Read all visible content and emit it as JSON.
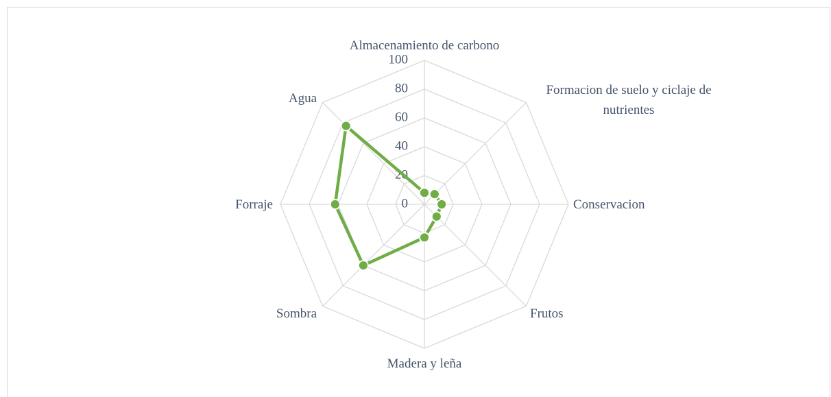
{
  "chart_data": {
    "type": "radar",
    "categories": [
      "Almacenamiento de carbono",
      "Formacion de suelo y ciclaje de nutrientes",
      "Conservacion",
      "Frutos",
      "Madera y leña",
      "Sombra",
      "Forraje",
      "Agua"
    ],
    "values": [
      8,
      10,
      12,
      12,
      23,
      60,
      62,
      77
    ],
    "color": "#70ad47",
    "ylim": [
      0,
      100
    ],
    "yticks": [
      0,
      20,
      40,
      60,
      80,
      100
    ],
    "grid": true
  }
}
